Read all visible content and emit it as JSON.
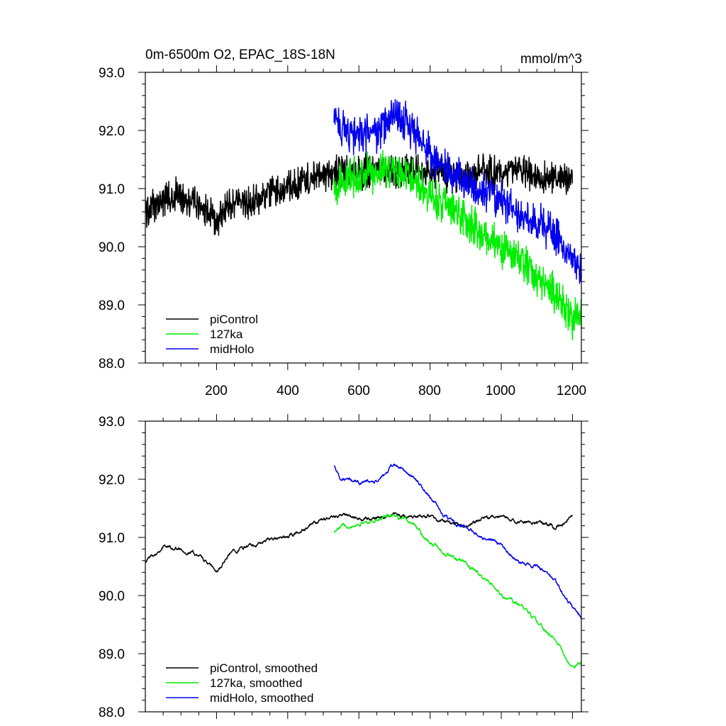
{
  "chart_data": [
    {
      "type": "line",
      "title": "0m-6500m O2, EPAC_18S-18N",
      "units": "mmol/m^3",
      "xlabel": "",
      "ylabel": "",
      "xlim": [
        0,
        1225
      ],
      "ylim": [
        88.0,
        93.0
      ],
      "x_ticks": [
        200,
        400,
        600,
        800,
        1000,
        1200
      ],
      "x_tick_labels": [
        "200",
        "400",
        "600",
        "800",
        "1000",
        "1200"
      ],
      "y_ticks": [
        88.0,
        89.0,
        90.0,
        91.0,
        92.0,
        93.0
      ],
      "y_tick_labels": [
        "88.0",
        "89.0",
        "90.0",
        "91.0",
        "92.0",
        "93.0"
      ],
      "legend_position": "bottom-left",
      "series": [
        {
          "name": "piControl",
          "color": "#000000",
          "x": [
            0,
            50,
            100,
            150,
            200,
            250,
            300,
            350,
            400,
            450,
            500,
            550,
            600,
            650,
            700,
            750,
            800,
            850,
            900,
            950,
            1000,
            1050,
            1100,
            1150,
            1200
          ],
          "y": [
            90.6,
            90.8,
            90.9,
            90.7,
            90.45,
            90.8,
            90.75,
            90.95,
            91.0,
            91.15,
            91.2,
            91.3,
            91.25,
            91.35,
            91.3,
            91.35,
            91.3,
            91.25,
            91.2,
            91.3,
            91.25,
            91.3,
            91.2,
            91.15,
            91.25
          ],
          "noise": 0.22
        },
        {
          "name": "127ka",
          "color": "#00ee00",
          "x": [
            530,
            560,
            600,
            650,
            700,
            750,
            800,
            850,
            900,
            950,
            1000,
            1050,
            1100,
            1150,
            1200,
            1225
          ],
          "y": [
            91.05,
            91.15,
            91.2,
            91.3,
            91.35,
            91.2,
            90.9,
            90.65,
            90.5,
            90.2,
            89.95,
            89.8,
            89.5,
            89.2,
            88.75,
            88.8
          ],
          "noise": 0.25
        },
        {
          "name": "midHolo",
          "color": "#0000ee",
          "x": [
            530,
            550,
            600,
            650,
            700,
            750,
            800,
            850,
            900,
            950,
            1000,
            1050,
            1100,
            1150,
            1200,
            1225
          ],
          "y": [
            92.25,
            92.05,
            91.9,
            91.95,
            92.25,
            92.05,
            91.6,
            91.3,
            91.1,
            90.95,
            90.85,
            90.55,
            90.45,
            90.2,
            89.8,
            89.65
          ],
          "noise": 0.25
        }
      ]
    },
    {
      "type": "line",
      "title": "",
      "xlabel": "",
      "ylabel": "",
      "xlim": [
        0,
        1225
      ],
      "ylim": [
        88.0,
        93.0
      ],
      "x_ticks": [
        200,
        400,
        600,
        800,
        1000,
        1200
      ],
      "y_ticks": [
        88.0,
        89.0,
        90.0,
        91.0,
        92.0,
        93.0
      ],
      "y_tick_labels": [
        "88.0",
        "89.0",
        "90.0",
        "91.0",
        "92.0",
        "93.0"
      ],
      "legend_position": "bottom-left",
      "series": [
        {
          "name": "piControl, smoothed",
          "color": "#000000",
          "x": [
            0,
            50,
            100,
            150,
            200,
            250,
            300,
            350,
            400,
            450,
            500,
            550,
            600,
            650,
            700,
            750,
            800,
            850,
            900,
            950,
            1000,
            1050,
            1100,
            1150,
            1200
          ],
          "y": [
            90.6,
            90.85,
            90.8,
            90.7,
            90.4,
            90.8,
            90.85,
            90.95,
            91.0,
            91.15,
            91.3,
            91.4,
            91.3,
            91.35,
            91.4,
            91.35,
            91.35,
            91.25,
            91.2,
            91.3,
            91.35,
            91.25,
            91.3,
            91.15,
            91.35
          ],
          "noise": 0.07
        },
        {
          "name": "127ka, smoothed",
          "color": "#00ee00",
          "x": [
            530,
            560,
            600,
            650,
            700,
            750,
            800,
            850,
            900,
            950,
            1000,
            1050,
            1100,
            1150,
            1200,
            1225
          ],
          "y": [
            91.1,
            91.2,
            91.25,
            91.3,
            91.4,
            91.25,
            90.9,
            90.7,
            90.55,
            90.3,
            90.0,
            89.85,
            89.55,
            89.25,
            88.75,
            88.85
          ],
          "noise": 0.07
        },
        {
          "name": "midHolo, smoothed",
          "color": "#0000ee",
          "x": [
            530,
            550,
            600,
            650,
            700,
            750,
            800,
            850,
            900,
            950,
            1000,
            1050,
            1100,
            1150,
            1200,
            1225
          ],
          "y": [
            92.25,
            92.0,
            91.95,
            91.95,
            92.25,
            92.05,
            91.7,
            91.3,
            91.15,
            91.0,
            90.9,
            90.55,
            90.5,
            90.25,
            89.8,
            89.6
          ],
          "noise": 0.07
        }
      ]
    }
  ]
}
